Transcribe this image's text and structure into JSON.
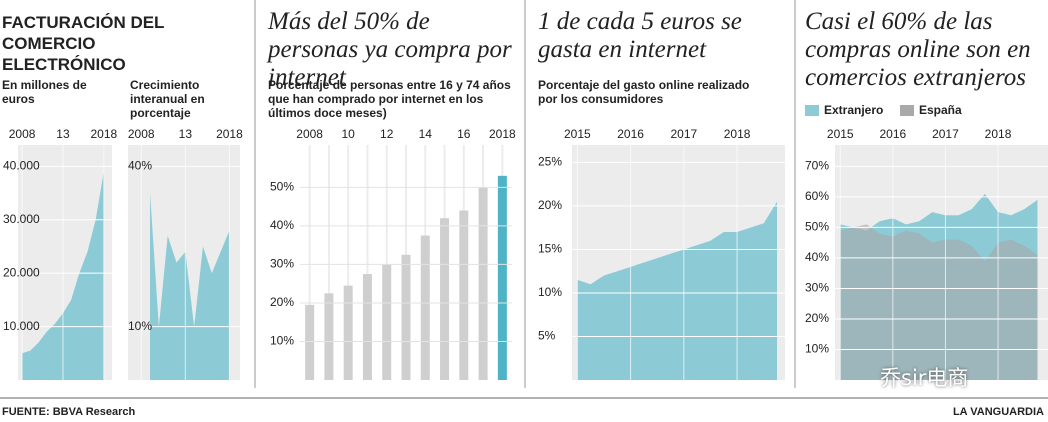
{
  "chart_data": [
    {
      "type": "area",
      "title": "FACTURACIÓN DEL COMERCIO ELECTRÓNICO",
      "subtitle": "En millones de euros",
      "x": [
        2008,
        2009,
        2010,
        2011,
        2012,
        2013,
        2014,
        2015,
        2016,
        2017,
        2018
      ],
      "values": [
        5000,
        5500,
        7000,
        9000,
        10500,
        12500,
        15000,
        20000,
        24000,
        30000,
        39000
      ],
      "color": "#8ccbd6",
      "xlim": [
        2007.5,
        2019
      ],
      "xticks": [
        2008,
        {
          "value": 2013,
          "label": "13"
        },
        2018
      ],
      "ylim": [
        0,
        44000
      ],
      "yticks": [
        {
          "value": 10000,
          "label": "10.000"
        },
        {
          "value": 20000,
          "label": "20.000"
        },
        {
          "value": 30000,
          "label": "30.000"
        },
        {
          "value": 40000,
          "label": "40.000"
        }
      ],
      "grid": true
    },
    {
      "type": "area",
      "subtitle": "Crecimiento interanual en porcentaje",
      "x": [
        2009,
        2010,
        2011,
        2012,
        2013,
        2014,
        2015,
        2016,
        2017,
        2018
      ],
      "values": [
        35,
        10,
        27,
        22,
        24,
        10,
        25,
        20,
        24,
        28
      ],
      "color": "#8ccbd6",
      "xlim": [
        2006.5,
        2019.2
      ],
      "xticks": [
        2008,
        {
          "value": 2013,
          "label": "13"
        },
        2018
      ],
      "ylim": [
        0,
        44
      ],
      "yticks": [
        {
          "value": 10,
          "label": "10%"
        },
        {
          "value": 40,
          "label": "40%"
        }
      ],
      "grid": true
    },
    {
      "type": "bar",
      "title": "Más del 50% de personas ya compra por internet",
      "subtitle": "Porcentaje de personas entre 16 y 74 años que han comprado por internet en los últimos doce meses)",
      "categories": [
        "2008",
        null,
        "10",
        null,
        "12",
        null,
        "14",
        null,
        "16",
        null,
        "2018"
      ],
      "values": [
        19.5,
        22.5,
        24.5,
        27.5,
        30,
        32.5,
        37.5,
        42,
        44,
        50,
        53
      ],
      "colors": [
        "#cfcfcf",
        "#cfcfcf",
        "#cfcfcf",
        "#cfcfcf",
        "#cfcfcf",
        "#cfcfcf",
        "#cfcfcf",
        "#cfcfcf",
        "#cfcfcf",
        "#cfcfcf",
        "#4fb3c6"
      ],
      "ylim": [
        0,
        61
      ],
      "yticks": [
        {
          "value": 10,
          "label": "10%"
        },
        {
          "value": 20,
          "label": "20%"
        },
        {
          "value": 30,
          "label": "30%"
        },
        {
          "value": 40,
          "label": "40%"
        },
        {
          "value": 50,
          "label": "50%"
        }
      ],
      "grid": true
    },
    {
      "type": "area",
      "title": "1 de cada 5 euros se gasta en internet",
      "subtitle": "Porcentaje del gasto online realizado por los consumidores",
      "x": [
        2015,
        2015.25,
        2015.5,
        2015.75,
        2016,
        2016.25,
        2016.5,
        2016.75,
        2017,
        2017.25,
        2017.5,
        2017.75,
        2018,
        2018.25,
        2018.5,
        2018.75
      ],
      "values": [
        11.5,
        11,
        12,
        12.5,
        13,
        13.5,
        14,
        14.5,
        15,
        15.5,
        16,
        17,
        17,
        17.5,
        18,
        20.5
      ],
      "color": "#8ccbd6",
      "xlim": [
        2014.9,
        2018.9
      ],
      "xticks": [
        2015,
        2016,
        2017,
        2018
      ],
      "ylim": [
        0,
        27
      ],
      "yticks": [
        {
          "value": 5,
          "label": "5%"
        },
        {
          "value": 10,
          "label": "10%"
        },
        {
          "value": 15,
          "label": "15%"
        },
        {
          "value": 20,
          "label": "20%"
        },
        {
          "value": 25,
          "label": "25%"
        }
      ],
      "grid": true
    },
    {
      "type": "area",
      "title": "Casi el 60% de las compras online son en comercios extranjeros",
      "x": [
        2015,
        2015.25,
        2015.5,
        2015.75,
        2016,
        2016.25,
        2016.5,
        2016.75,
        2017,
        2017.25,
        2017.5,
        2017.75,
        2018,
        2018.25,
        2018.5,
        2018.75
      ],
      "series": [
        {
          "name": "Extranjero",
          "color": "#8ccbd6",
          "values": [
            51,
            50,
            49,
            52,
            53,
            51,
            52,
            55,
            54,
            54,
            56,
            61,
            55,
            54,
            56,
            59
          ]
        },
        {
          "name": "España",
          "color": "#a9a9a9",
          "values": [
            49,
            50,
            51,
            48,
            47,
            49,
            48,
            45,
            46,
            46,
            44,
            39,
            45,
            46,
            44,
            41
          ]
        }
      ],
      "xlim": [
        2014.9,
        2018.95
      ],
      "xticks": [
        2015,
        2016,
        2017,
        2018
      ],
      "ylim": [
        0,
        77
      ],
      "yticks": [
        {
          "value": 10,
          "label": "10%"
        },
        {
          "value": 20,
          "label": "20%"
        },
        {
          "value": 30,
          "label": "30%"
        },
        {
          "value": 40,
          "label": "40%"
        },
        {
          "value": 50,
          "label": "50%"
        },
        {
          "value": 60,
          "label": "60%"
        },
        {
          "value": 70,
          "label": "70%"
        }
      ],
      "grid": true
    }
  ],
  "footer": {
    "source": "FUENTE: BBVA Research",
    "brand": "LA VANGUARDIA"
  },
  "watermark": "乔sir电商"
}
